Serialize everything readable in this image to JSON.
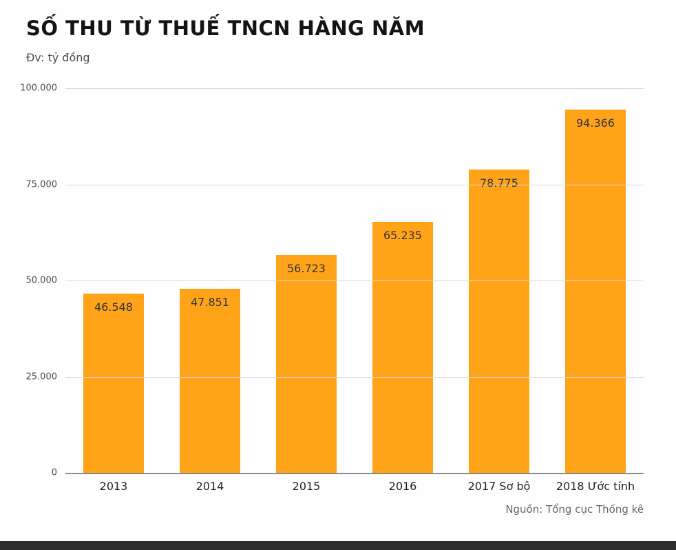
{
  "header": {
    "title": "SỐ THU TỪ THUẾ TNCN HÀNG NĂM",
    "unit_label": "Đv: tỷ đồng"
  },
  "footer": {
    "source": "Nguồn: Tổng cục Thống kê"
  },
  "chart_data": {
    "type": "bar",
    "title": "SỐ THU TỪ THUẾ TNCN HÀNG NĂM",
    "subtitle": "Đv: tỷ đồng",
    "categories": [
      "2013",
      "2014",
      "2015",
      "2016",
      "2017 Sơ bộ",
      "2018 Ước tính"
    ],
    "values": [
      46548,
      47851,
      56723,
      65235,
      78775,
      94366
    ],
    "value_labels": [
      "46.548",
      "47.851",
      "56.723",
      "65.235",
      "78.775",
      "94.366"
    ],
    "xlabel": "",
    "ylabel": "tỷ đồng",
    "ylim": [
      0,
      100000
    ],
    "yticks": [
      {
        "value": 0,
        "label": "0"
      },
      {
        "value": 25000,
        "label": "25.000"
      },
      {
        "value": 50000,
        "label": "50.000"
      },
      {
        "value": 75000,
        "label": "75.000"
      },
      {
        "value": 100000,
        "label": "100.000"
      }
    ],
    "grid": "horizontal",
    "legend": "none",
    "bar_color": "#FFA319",
    "value_label_color": "#333333",
    "source": "Nguồn: Tổng cục Thống kê"
  }
}
